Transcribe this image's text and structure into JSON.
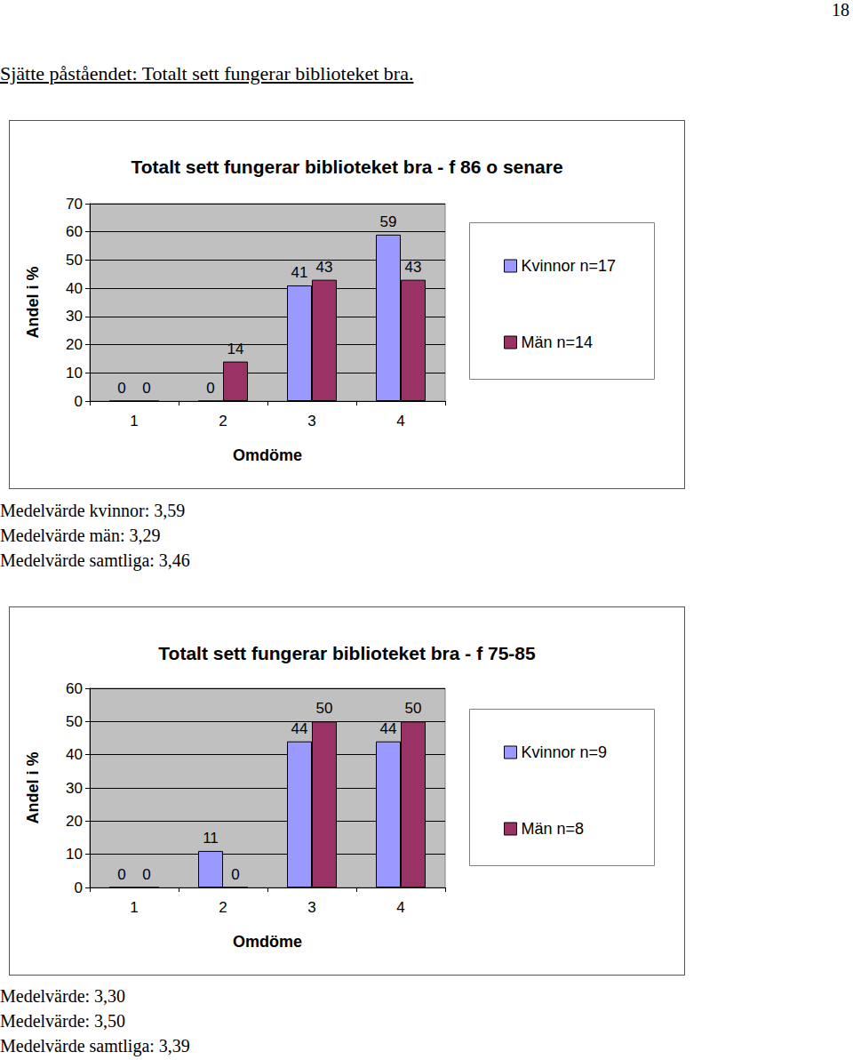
{
  "page_number": "18",
  "heading": "Sjätte påståendet: Totalt sett fungerar biblioteket bra.",
  "chart_data": [
    {
      "type": "bar",
      "title": "Totalt sett fungerar biblioteket bra - f 86 o senare",
      "x_label": "Omdöme",
      "y_label": "Andel i %",
      "categories": [
        "1",
        "2",
        "3",
        "4"
      ],
      "series": [
        {
          "name": "Kvinnor n=17",
          "color": "#9999ff",
          "values": [
            0,
            0,
            41,
            59
          ]
        },
        {
          "name": "Män n=14",
          "color": "#993366",
          "values": [
            0,
            14,
            43,
            43
          ]
        }
      ],
      "ylim": [
        0,
        70
      ],
      "yticks": [
        0,
        10,
        20,
        30,
        40,
        50,
        60,
        70
      ],
      "grid": true,
      "legend": "right",
      "data_labels": true
    },
    {
      "type": "bar",
      "title": "Totalt sett fungerar biblioteket bra - f 75-85",
      "x_label": "Omdöme",
      "y_label": "Andel i %",
      "categories": [
        "1",
        "2",
        "3",
        "4"
      ],
      "series": [
        {
          "name": "Kvinnor n=9",
          "color": "#9999ff",
          "values": [
            0,
            11,
            44,
            44
          ]
        },
        {
          "name": "Män n=8",
          "color": "#993366",
          "values": [
            0,
            0,
            50,
            50
          ]
        }
      ],
      "ylim": [
        0,
        60
      ],
      "yticks": [
        0,
        10,
        20,
        30,
        40,
        50,
        60
      ],
      "grid": true,
      "legend": "right",
      "data_labels": true
    }
  ],
  "chart_notes": [
    [
      "Medelvärde kvinnor: 3,59",
      "Medelvärde män: 3,29",
      "Medelvärde samtliga: 3,46"
    ],
    [
      "Medelvärde: 3,30",
      "Medelvärde: 3,50",
      "Medelvärde samtliga: 3,39"
    ]
  ]
}
